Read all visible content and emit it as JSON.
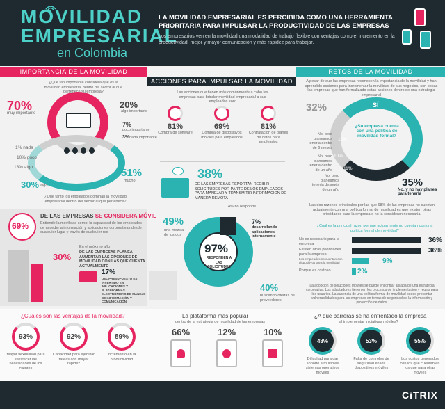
{
  "header": {
    "title_line1": "MOVILIDAD",
    "title_line2": "EMPRESARIAL",
    "title_line3": "en Colombia",
    "headline": "LA MOVILIDAD EMPRESARIAL ES PERCIBIDA COMO UNA HERRAMIENTA PRIORITARIA PARA IMPULSAR LA PRODUCTIVIDAD DE LAS EMPRESAS",
    "subtext": "Los empresarios ven en la movilidad una modalidad de trabajo flexible con ventajas como el incremento en la productividad, mejor y mayor comunicación y más rapidez para trabajar."
  },
  "importancia": {
    "title": "IMPORTANCIA DE LA MOVILIDAD",
    "question": "¿Qué tan importante considera que es la movilidad empresarial dentro del sector al que pertenece su empresa?",
    "pct_muy": "70%",
    "lbl_muy": "muy importante",
    "pct_algo": "20%",
    "lbl_algo": "algo importante",
    "pct_dep": "7%",
    "lbl_dep": "poco importante",
    "pct_nada": "3%",
    "lbl_nada": "nada importante",
    "pct_1": "1%",
    "lbl_1": "nada",
    "pct_10": "10%",
    "lbl_10": "poco",
    "pct_18": "18%",
    "lbl_18": "algo",
    "pct_30": "30%",
    "lbl_30": "algo",
    "pct_51": "51%",
    "lbl_51": "mucho",
    "question2": "¿Qué tanto los empleados dominan la movilidad empresarial dentro del sector al que pertenece?"
  },
  "acciones": {
    "title": "ACCIONES PARA IMPULSAR LA MOVILIDAD",
    "intro": "Las acciones que tienen más comúnmente a cabo las empresas para brindar movilidad empresarial a sus empleados son:",
    "items": [
      {
        "pct": "81%",
        "label": "Compra de software"
      },
      {
        "pct": "69%",
        "label": "Compra de dispositivos móviles para empleados"
      },
      {
        "pct": "81%",
        "label": "Contratación de planes de datos para empleados"
      }
    ],
    "p38": "38%",
    "p38_text": "DE LAS EMPRESAS REPORTAN RECIBIR SOLICITUDES POR PARTE DE LOS EMPLEADOS PARA MANEJAR Y TRANSMITIR INFORMACIÓN DE MANERA REMOTA",
    "p4": "4%",
    "p4_lbl": "no responde",
    "p7": "7%",
    "p7_lbl": "desarrollando aplicaciones internamente",
    "p49": "49%",
    "p49_lbl": "una mezcla de los dos",
    "p97": "97%",
    "p97_lbl": "RESPONDEN A LAS SOLICITUDES",
    "p40": "40%",
    "p40_lbl": "buscando ofertas de proveedores"
  },
  "considera": {
    "pct": "69%",
    "title_a": "DE LAS EMPRESAS ",
    "title_b": "SE CONSIDERA MÓVIL",
    "text": "Entiende la movilidad como: la capacidad de los empleados de acceder a información y aplicaciones corporativas desde cualquier lugar y través de cualquier red",
    "pct30": "30%",
    "text30a": "En el próximo año",
    "text30b": "DE LAS EMPRESAS PLANEA AUMENTAR LAS OPCIONES DE MOVILIDAD CON LAS QUE CUENTA ACTUALMENTE",
    "pct17": "17%",
    "text17": "DEL PRESUPUESTO ES INVERTIDO EN APLICACIONES Y PLATAFORMAS ELECTRÓNICAS DE MANEJO DE INFORMACIÓN Y COMUNICACIÓN"
  },
  "retos": {
    "title": "RETOS DE LA MOVILIDAD",
    "intro": "A pesar de que las empresas reconocen la importancia de la movilidad y han aprendido acciones para incrementar la movilidad de sus negocios, son pocas las empresas que han formalizado estas acciones dentro de una estrategia empresarial",
    "p32": "32%",
    "si": "SÍ",
    "question": "¿Su empresa cuenta con una política de movilidad formal?",
    "p10a": "10%",
    "p10b": "10%",
    "p11": "11%",
    "no1": "No, pero planeamos tenerla dentro de 6 meses",
    "no2": "No, pero planeamos tenerla dentro de un año",
    "no3": "No, pero planeamos tenerla después de un año",
    "p35": "35%",
    "p35_lbl": "No, y no hay planes para tenerla",
    "note": "Las dos razones principales por las que 68% de las empresas no cuentan actualmente con una política formal de movilidad es que existen otras prioridades para la empresa o no la consideran necesaria.",
    "q2": "¿Cuál es la principal razón por que actualmente no cuentan con una política formal de movilidad?",
    "bars": [
      {
        "label": "No es necesario para la empresa",
        "value": 36,
        "text": "36%"
      },
      {
        "label": "Existen otras prioridades para la empresa",
        "value": 36,
        "text": "36%"
      },
      {
        "label": "Los empleados no cuentan con dispositivos para la movilidad",
        "value": 9,
        "text": "9%"
      },
      {
        "label": "Porque es costoso",
        "value": 2,
        "text": "2%"
      }
    ],
    "footnote": "La adopción de soluciones móviles se puede encontrar aislada de una estrategia corporativa. Los adaptadores tienen en los procesos de implementación y reglas para los usuarios. La ausencia de una política formal de movilidad puede presentar vulnerabilidades para las empresas en temas de seguridad de la información y protección de datos."
  },
  "ventajas": {
    "title": "¿Cuáles son las ventajas de la movilidad?",
    "items": [
      {
        "pct": "93%",
        "label": "Mayor flexibilidad para satisfacer las necesidades de los clientes"
      },
      {
        "pct": "92%",
        "label": "Capacidad para ejecutar tareas con mayor rapidez"
      },
      {
        "pct": "89%",
        "label": "Incremento en la productividad"
      }
    ]
  },
  "plataforma": {
    "title": "La plataforma más popular",
    "subtitle": "dentro de la estrategia de movilidad de las empresas",
    "items": [
      {
        "pct": "66%",
        "icon": "android-icon"
      },
      {
        "pct": "12%",
        "icon": "apple-icon"
      },
      {
        "pct": "10%",
        "icon": "windows-icon"
      }
    ]
  },
  "barreras": {
    "title": "¿A qué barreras se ha enfrentado la empresa",
    "subtitle": "al implementar iniciativas móviles?",
    "items": [
      {
        "pct": "48%",
        "label": "Dificultad para dar soporte a múltiples sistemas operativos móviles"
      },
      {
        "pct": "53%",
        "label": "Falta de controles de seguridad en los dispositivos móviles"
      },
      {
        "pct": "55%",
        "label": "Los costos generados con los que cuentan en los que para otras móviles"
      }
    ]
  },
  "footer": {
    "brand": "CiTRIX"
  },
  "colors": {
    "pink": "#e6245f",
    "teal": "#2ab3b1",
    "dark": "#1e2a2f"
  }
}
